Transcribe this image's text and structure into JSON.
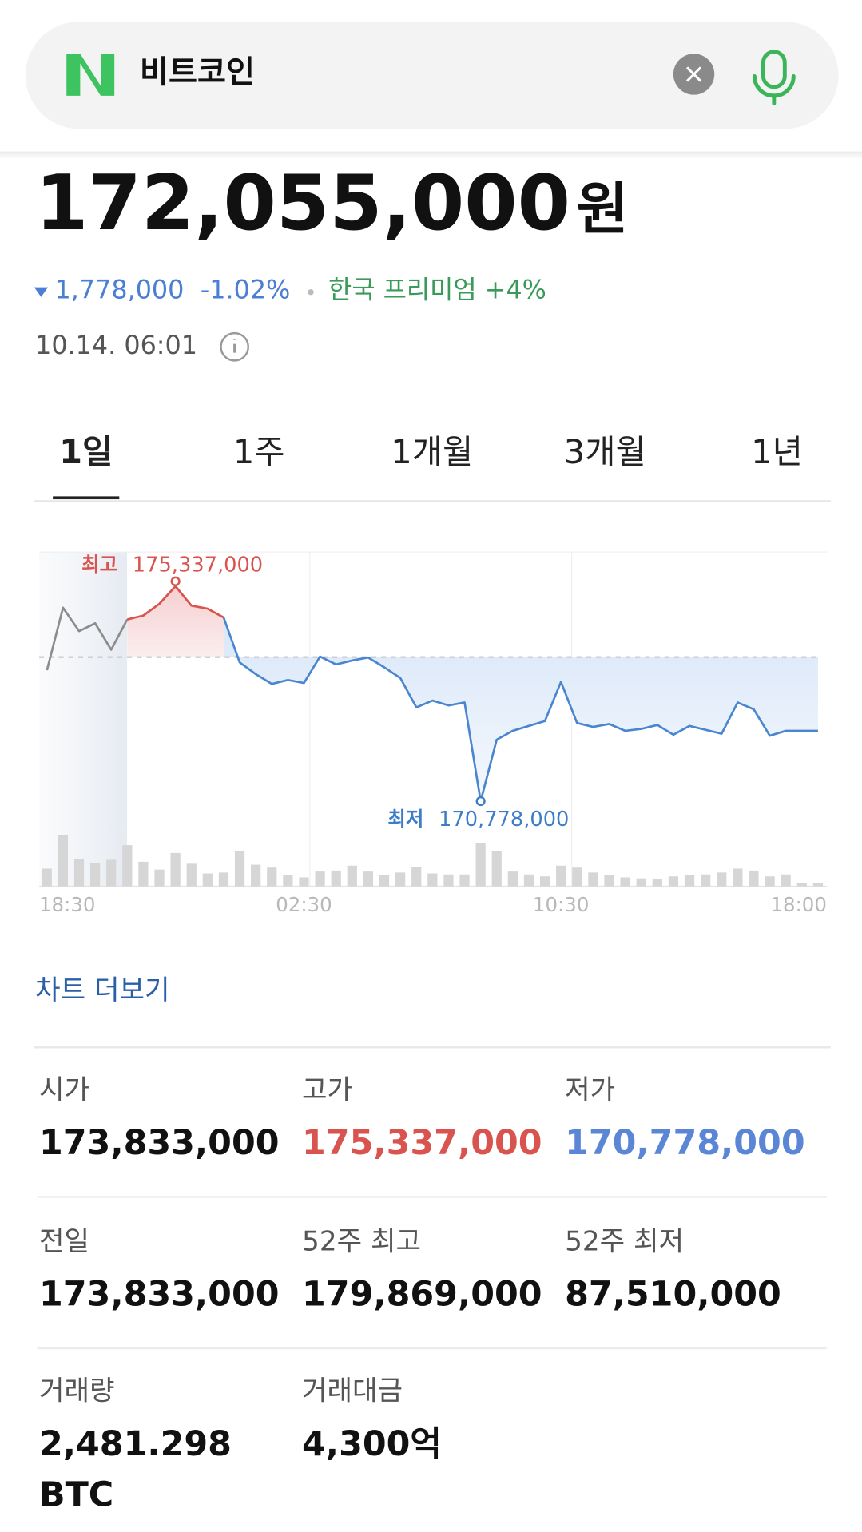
{
  "search": {
    "query": "비트코인"
  },
  "quote": {
    "price": "172,055,000",
    "currency": "원",
    "change": "1,778,000",
    "change_percent": "-1.02%",
    "premium": "한국 프리미엄 +4%",
    "time": "10.14. 06:01"
  },
  "tabs": {
    "items": [
      "1일",
      "1주",
      "1개월",
      "3개월",
      "1년"
    ],
    "active": 0
  },
  "chart_data": {
    "type": "line",
    "categories": [
      "18:30",
      null,
      null,
      null,
      null,
      null,
      null,
      null,
      null,
      null,
      null,
      null,
      null,
      null,
      null,
      null,
      "02:30",
      null,
      null,
      null,
      null,
      null,
      null,
      null,
      null,
      null,
      null,
      null,
      null,
      null,
      null,
      null,
      "10:30",
      null,
      null,
      null,
      null,
      null,
      null,
      null,
      null,
      null,
      null,
      null,
      null,
      null,
      null,
      "18:00",
      null
    ],
    "series": [
      {
        "color": "#4a86d0",
        "values": [
          173555000,
          174881000,
          174384000,
          174550000,
          173990000,
          174632000,
          174715000,
          174964000,
          175337000,
          174923000,
          174860000,
          174674000,
          173721000,
          173472000,
          173265000,
          173348000,
          173285000,
          173845000,
          173679000,
          173762000,
          173824000,
          173617000,
          173389000,
          172767000,
          172912000,
          172809000,
          172871000,
          170778000,
          172083000,
          172270000,
          172374000,
          172477000,
          173306000,
          172436000,
          172353000,
          172415000,
          172270000,
          172311000,
          172394000,
          172187000,
          172374000,
          172291000,
          172208000,
          172871000,
          172726000,
          172166000,
          172270000,
          172270000,
          172270000
        ]
      }
    ],
    "volume": [
      18,
      52,
      28,
      24,
      27,
      42,
      25,
      17,
      34,
      23,
      13,
      14,
      36,
      22,
      19,
      11,
      9,
      15,
      16,
      21,
      15,
      11,
      14,
      20,
      13,
      12,
      12,
      44,
      36,
      15,
      12,
      10,
      21,
      19,
      14,
      11,
      9,
      8,
      7,
      10,
      11,
      12,
      14,
      18,
      16,
      10,
      12,
      3,
      3
    ],
    "volume_color": "#d6d6d6",
    "ylim": [
      168975000,
      176062000
    ],
    "baseline": 173833000,
    "high": {
      "label": "최고",
      "value_label": "175,337,000",
      "color": "#d9534f"
    },
    "low": {
      "label": "최저",
      "value_label": "170,778,000",
      "color": "#3d7cc9"
    }
  },
  "more_link": "차트 더보기",
  "stats": [
    {
      "label": "시가",
      "value": "173,833,000"
    },
    {
      "label": "고가",
      "value": "175,337,000",
      "color": "#d9534f"
    },
    {
      "label": "저가",
      "value": "170,778,000",
      "color": "#5b86d6"
    },
    {
      "label": "전일",
      "value": "173,833,000"
    },
    {
      "label": "52주 최고",
      "value": "179,869,000"
    },
    {
      "label": "52주 최저",
      "value": "87,510,000"
    },
    {
      "label": "거래량",
      "value": "2,481.298",
      "unit": "BTC"
    },
    {
      "label": "거래대금",
      "value": "4,300억"
    }
  ]
}
